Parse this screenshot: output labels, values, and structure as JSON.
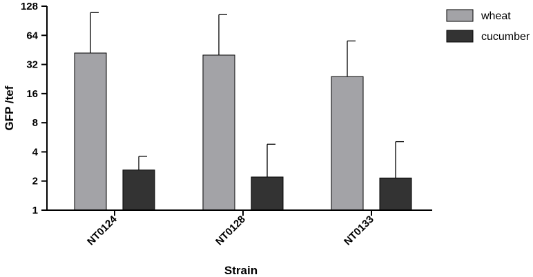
{
  "chart_data": {
    "type": "bar",
    "xlabel": "Strain",
    "ylabel": "GFP /tef",
    "y_scale": "log2",
    "ylim": [
      1,
      128
    ],
    "yticks": [
      1,
      2,
      4,
      8,
      16,
      32,
      64,
      128
    ],
    "categories": [
      "NT0124",
      "NT0128",
      "NT0133"
    ],
    "series": [
      {
        "name": "wheat",
        "color": "#a3a3a7",
        "values": [
          42,
          40,
          24
        ],
        "error_upper": [
          110,
          105,
          56
        ]
      },
      {
        "name": "cucumber",
        "color": "#333333",
        "values": [
          2.6,
          2.2,
          2.15
        ],
        "error_upper": [
          3.6,
          4.8,
          5.1
        ]
      }
    ],
    "legend_position": "top-right",
    "grid": false
  }
}
